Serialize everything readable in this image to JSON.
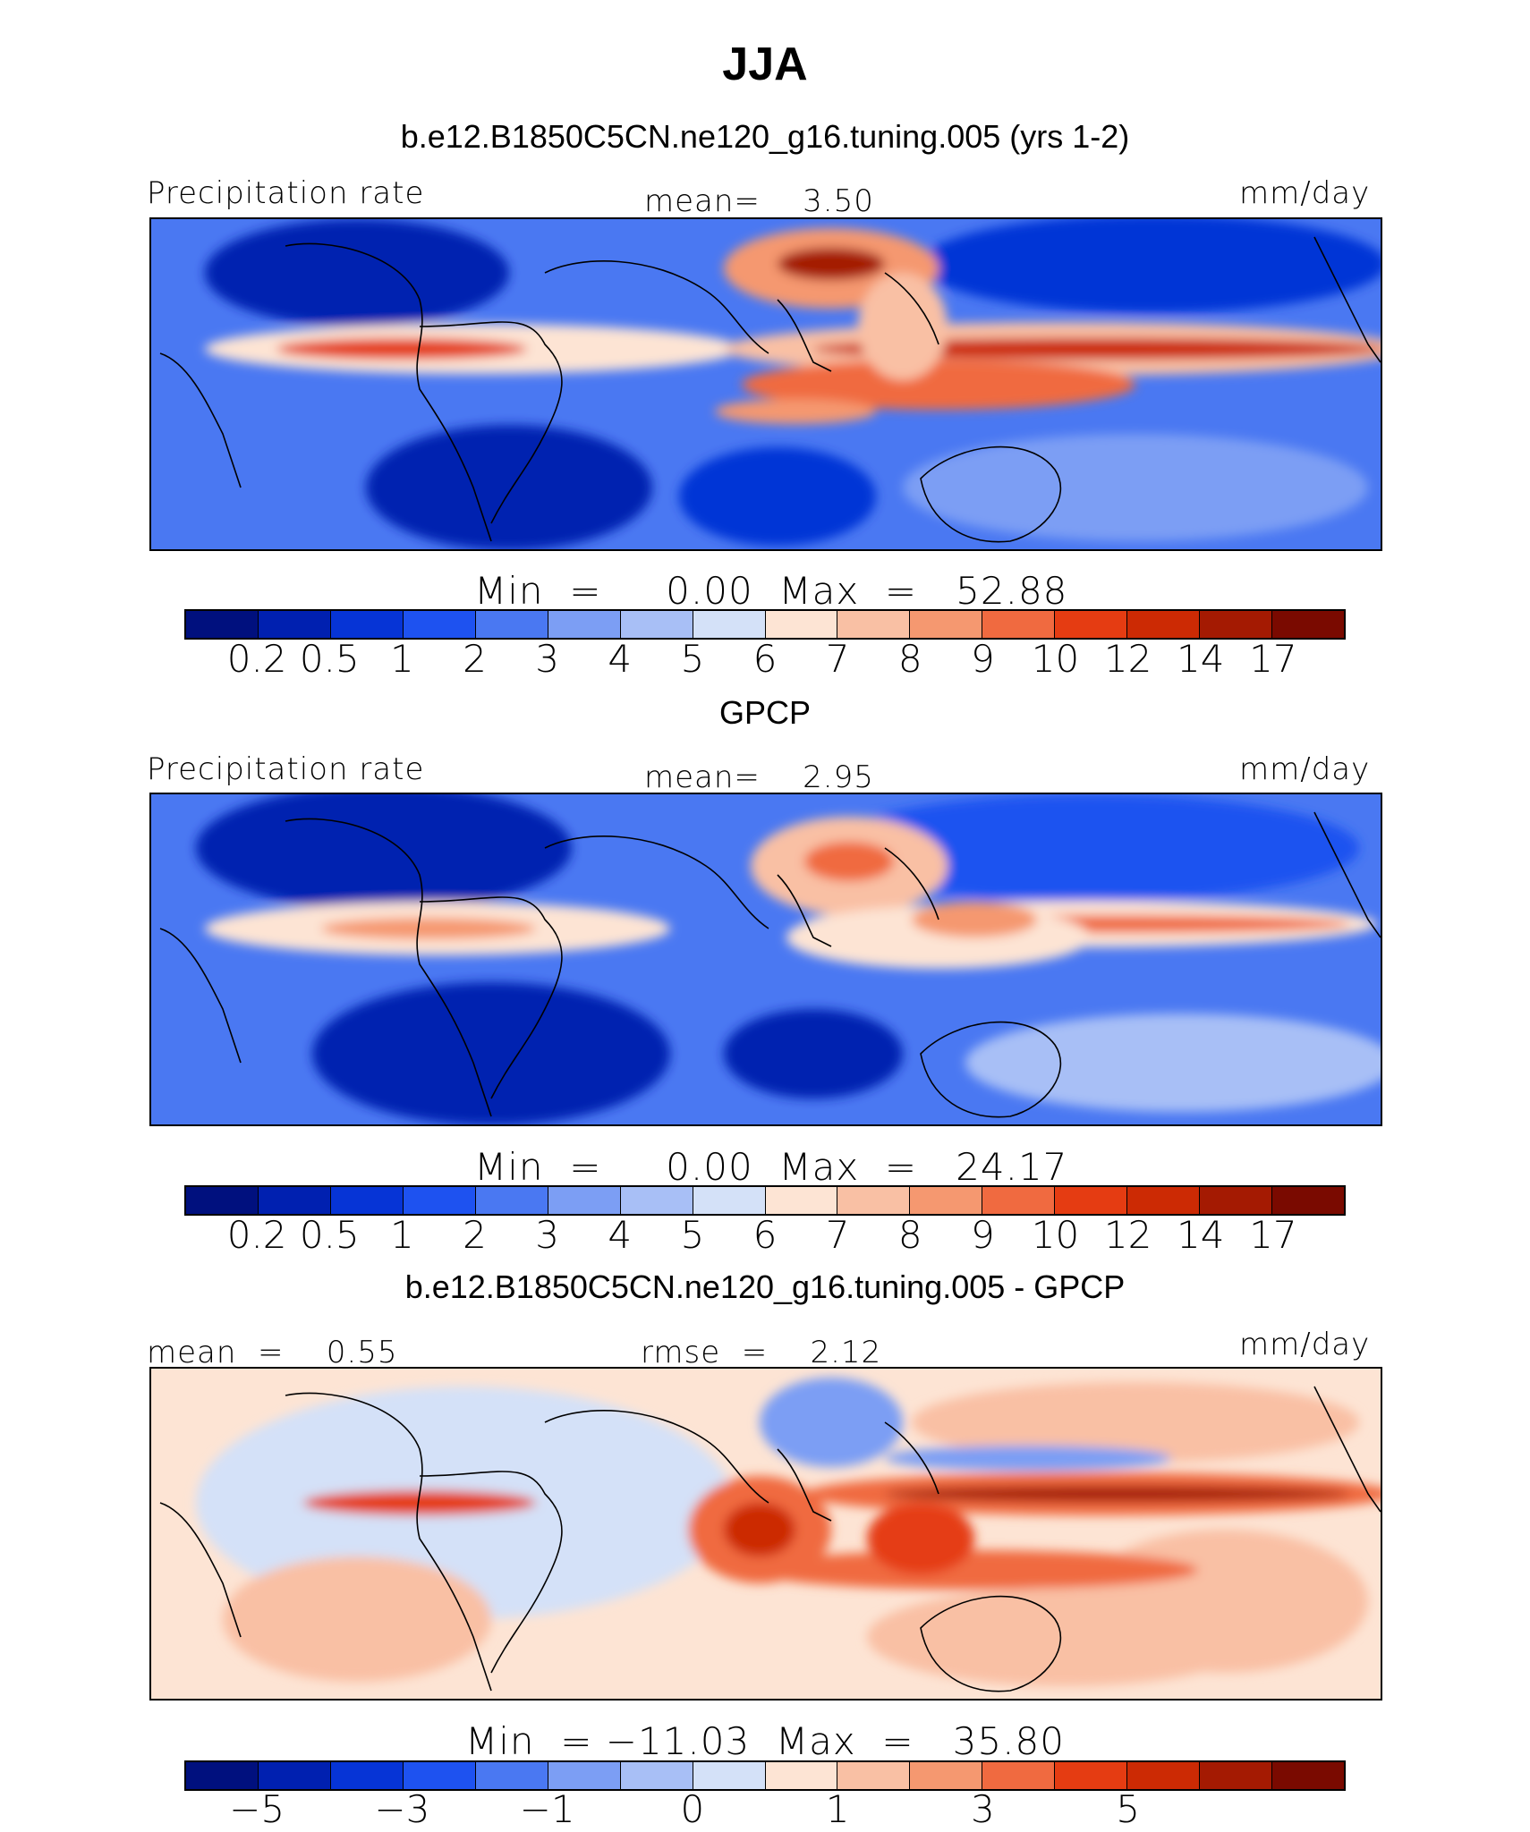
{
  "title": "JJA",
  "panels": [
    {
      "heading": "b.e12.B1850C5CN.ne120_g16.tuning.005 (yrs 1-2)",
      "left_label": "Precipitation rate",
      "center_label": "mean=    3.50",
      "right_label": "mm/day",
      "minmax": "Min  =     0.00  Max  =   52.88",
      "colorbar_ticks": [
        "0.2",
        "0.5",
        "1",
        "2",
        "3",
        "4",
        "5",
        "6",
        "7",
        "8",
        "9",
        "10",
        "12",
        "14",
        "17"
      ]
    },
    {
      "heading": "GPCP",
      "left_label": "Precipitation rate",
      "center_label": "mean=    2.95",
      "right_label": "mm/day",
      "minmax": "Min  =     0.00  Max  =   24.17",
      "colorbar_ticks": [
        "0.2",
        "0.5",
        "1",
        "2",
        "3",
        "4",
        "5",
        "6",
        "7",
        "8",
        "9",
        "10",
        "12",
        "14",
        "17"
      ]
    },
    {
      "heading": "b.e12.B1850C5CN.ne120_g16.tuning.005 - GPCP",
      "left_label": "mean  =    0.55",
      "center_label": "rmse  =    2.12",
      "right_label": "mm/day",
      "minmax": "Min  = −11.03  Max  =   35.80",
      "colorbar_ticks": [
        "−5",
        "−3",
        "−1",
        "0",
        "1",
        "3",
        "5"
      ]
    }
  ],
  "colors": [
    "#00107e",
    "#0020b0",
    "#0634d6",
    "#1e52f0",
    "#4a78f2",
    "#7c9ef4",
    "#a8bff6",
    "#d4e1f8",
    "#fde4d4",
    "#f9c0a4",
    "#f59870",
    "#f06a40",
    "#e53c12",
    "#cc2a04",
    "#a41a02",
    "#7a0a00"
  ]
}
